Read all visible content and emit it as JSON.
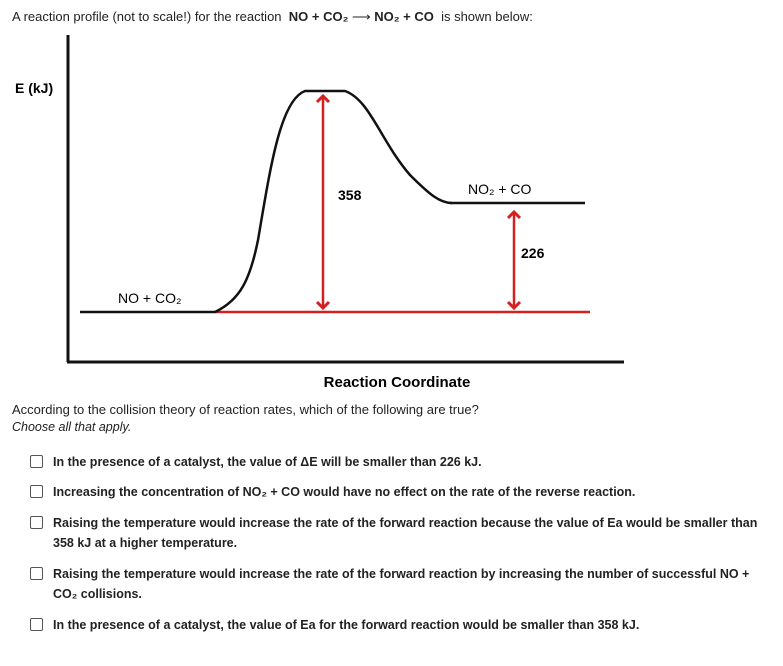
{
  "intro": {
    "before": "A reaction profile (not to scale!) for the reaction",
    "reactants": "NO + CO₂",
    "products": "NO₂ + CO",
    "after": "is shown below:"
  },
  "diagram": {
    "y_axis_label": "E (kJ)",
    "x_axis_label": "Reaction Coordinate",
    "reactants": "NO + CO₂",
    "products": "NO₂ + CO",
    "activation_energy": 358,
    "delta_e": 226
  },
  "question": {
    "prompt": "According to the collision theory of reaction rates, which of the following are true?",
    "instruction": "Choose all that apply."
  },
  "options": [
    "In the presence of a catalyst, the value of ΔE will be smaller than 226 kJ.",
    "Increasing the concentration of NO₂ + CO would have no effect on the rate of the reverse reaction.",
    "Raising the temperature would increase the rate of the forward reaction because the value of Ea would be smaller than 358 kJ at a higher temperature.",
    "Raising the temperature would increase the rate of the forward reaction by increasing the number of successful NO + CO₂ collisions.",
    "In the presence of a catalyst, the value of Ea for the forward reaction would be smaller than 358 kJ."
  ]
}
